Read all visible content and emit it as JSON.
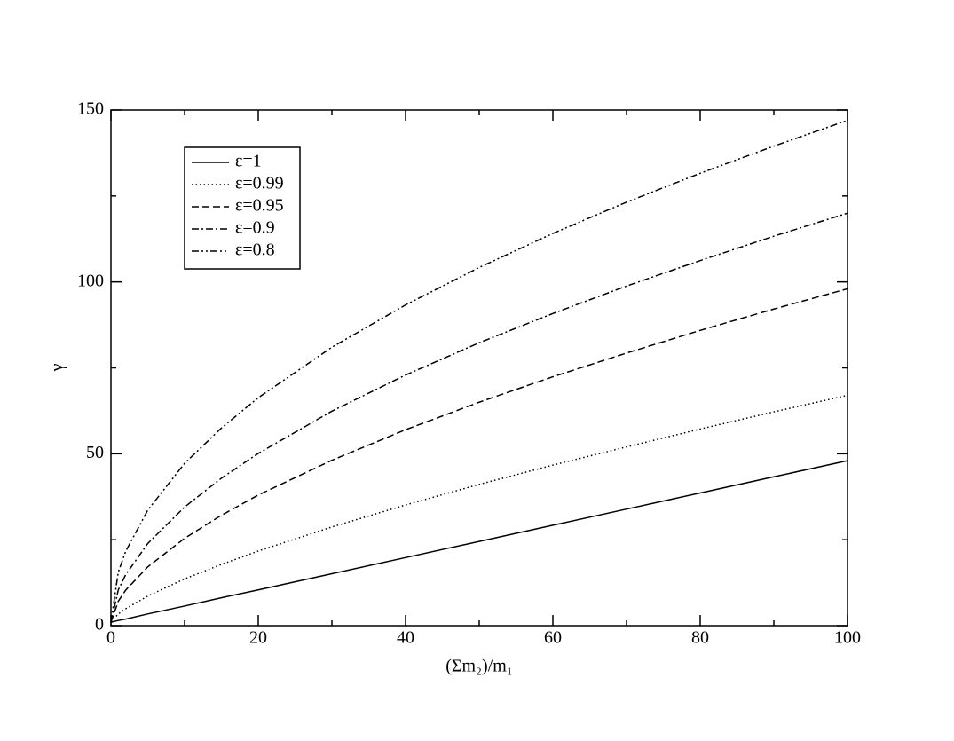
{
  "chart_data": {
    "type": "line",
    "xlabel": "(Σm₂)/m₁",
    "ylabel": "γ",
    "x": [
      0,
      1,
      2,
      5,
      10,
      15,
      20,
      30,
      40,
      50,
      60,
      70,
      80,
      90,
      100
    ],
    "series": [
      {
        "name": "ε=1",
        "color": "#000000",
        "dash": "none",
        "values": [
          1,
          1.5,
          1.9,
          3.4,
          5.7,
          8.1,
          10.4,
          15.1,
          19.8,
          24.5,
          29.2,
          33.9,
          38.6,
          43.3,
          48
        ]
      },
      {
        "name": "ε=0.99",
        "color": "#000000",
        "dash": "1.5,3",
        "values": [
          1,
          3.4,
          4.9,
          8.6,
          13.6,
          17.8,
          21.7,
          28.7,
          35.1,
          41.1,
          46.7,
          52.0,
          57.2,
          62.2,
          67
        ]
      },
      {
        "name": "ε=0.95",
        "color": "#000000",
        "dash": "8,4",
        "values": [
          1,
          7.1,
          10.3,
          17.1,
          25.4,
          32.1,
          38.0,
          48.1,
          57.0,
          65.0,
          72.4,
          79.3,
          85.9,
          92.1,
          98
        ]
      },
      {
        "name": "ε=0.9",
        "color": "#000000",
        "dash": "8,3,2,3",
        "values": [
          1,
          10.4,
          14.8,
          23.9,
          34.5,
          42.9,
          50.1,
          62.4,
          72.9,
          82.3,
          90.8,
          98.8,
          106.2,
          113.3,
          120
        ]
      },
      {
        "name": "ε=0.8",
        "color": "#000000",
        "dash": "8,3,2,3,2,3",
        "values": [
          1,
          15.6,
          21.6,
          33.6,
          47.2,
          57.5,
          66.3,
          81.0,
          93.3,
          104.2,
          114.1,
          123.2,
          131.6,
          139.5,
          147
        ]
      }
    ],
    "xlim": [
      0,
      100
    ],
    "xticks": [
      0,
      20,
      40,
      60,
      80,
      100
    ],
    "xminorticks": [
      10,
      30,
      50,
      70,
      90
    ],
    "ylim": [
      0,
      150
    ],
    "yticks": [
      0,
      50,
      100,
      150
    ],
    "yminorticks": [
      25,
      75,
      125
    ],
    "legend": "upper left"
  }
}
